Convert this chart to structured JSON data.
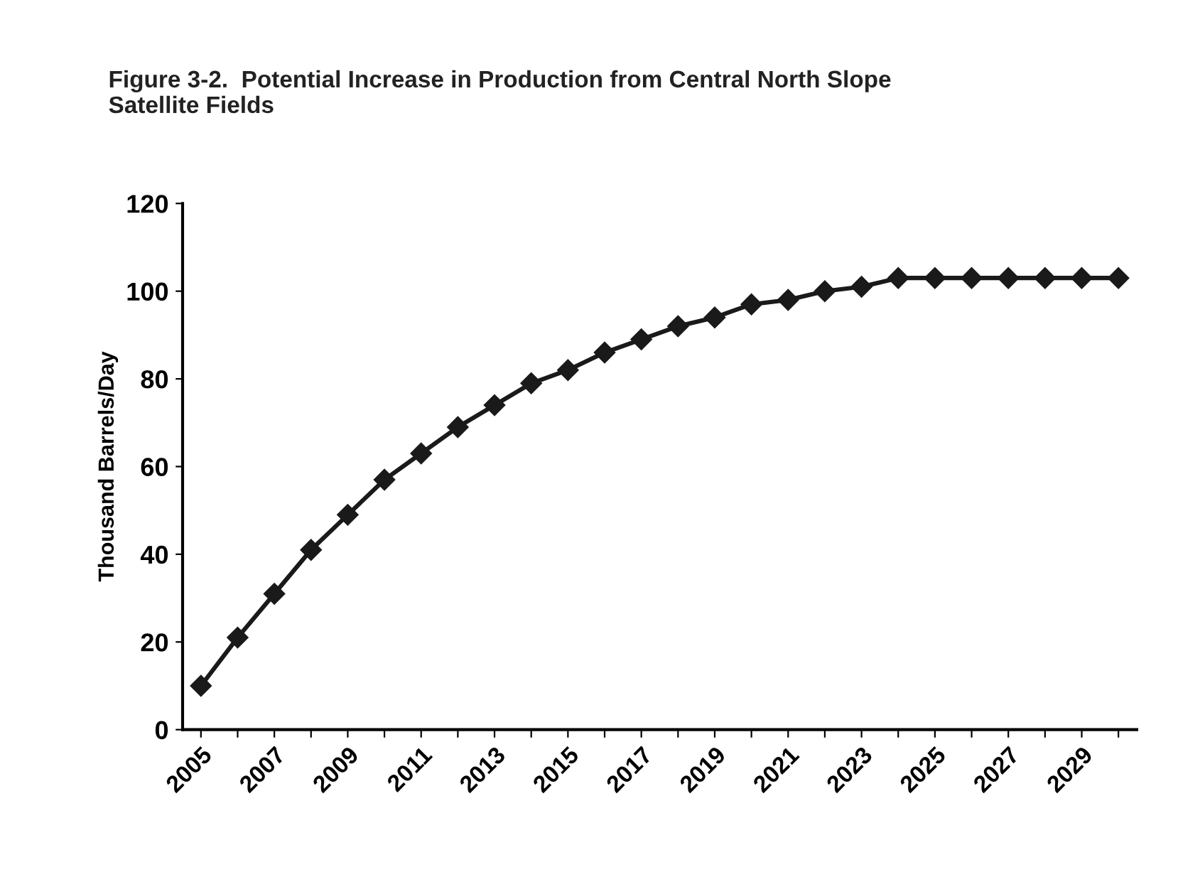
{
  "chart_data": {
    "type": "line",
    "title": "Figure 3-2.  Potential Increase in Production from Central North Slope\nSatellite Fields",
    "ylabel": "Thousand Barrels/Day",
    "categories": [
      "2005",
      null,
      "2007",
      null,
      "2009",
      null,
      "2011",
      null,
      "2013",
      null,
      "2015",
      null,
      "2017",
      null,
      "2019",
      null,
      "2021",
      null,
      "2023",
      null,
      "2025",
      null,
      "2027",
      null,
      "2029",
      null
    ],
    "series": [
      {
        "color": "#1a1a1a",
        "values": [
          10,
          21,
          31,
          41,
          49,
          57,
          63,
          69,
          74,
          79,
          82,
          86,
          89,
          92,
          94,
          97,
          98,
          100,
          101,
          103,
          103,
          103,
          103,
          103,
          103,
          103
        ]
      }
    ],
    "ylim": [
      0,
      120
    ],
    "yticks": [
      0,
      20,
      40,
      60,
      80,
      100,
      120
    ],
    "marker": "diamond",
    "line_style": "solid",
    "grid": false,
    "legend": false
  }
}
